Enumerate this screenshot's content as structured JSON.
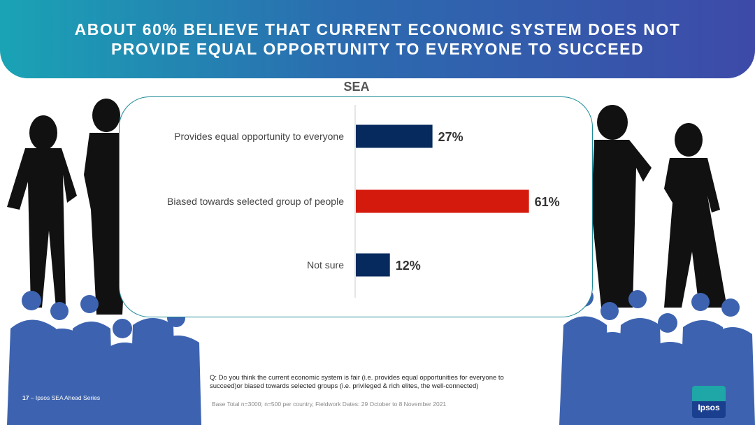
{
  "header": {
    "title": "ABOUT 60% BELIEVE THAT CURRENT ECONOMIC SYSTEM DOES NOT PROVIDE EQUAL OPPORTUNITY TO EVERYONE TO SUCCEED"
  },
  "chart_data": {
    "type": "bar",
    "orientation": "horizontal",
    "title": "SEA",
    "categories": [
      "Provides equal opportunity to everyone",
      "Biased towards selected group of people",
      "Not sure"
    ],
    "values": [
      27,
      61,
      12
    ],
    "value_labels": [
      "27%",
      "61%",
      "12%"
    ],
    "colors": [
      "#062a5e",
      "#d41a0c",
      "#062a5e"
    ],
    "xlim": [
      0,
      100
    ],
    "grid": false
  },
  "notes": {
    "question": "Q: Do you think the current economic system is fair (i.e. provides equal opportunities for everyone to succeed)or biased towards selected groups (i.e. privileged & rich elites, the well-connected)",
    "base": "Base Total n=3000; n=500 per country, Fieldwork Dates: 29 October to 8 November  2021"
  },
  "footer": {
    "page_number": "17",
    "source": "– Ipsos SEA Ahead Series"
  },
  "logo": {
    "text": "Ipsos"
  },
  "colors": {
    "silhouette": "#111111",
    "crowd": "#3d63b0",
    "panel_border": "#1c8a97"
  }
}
